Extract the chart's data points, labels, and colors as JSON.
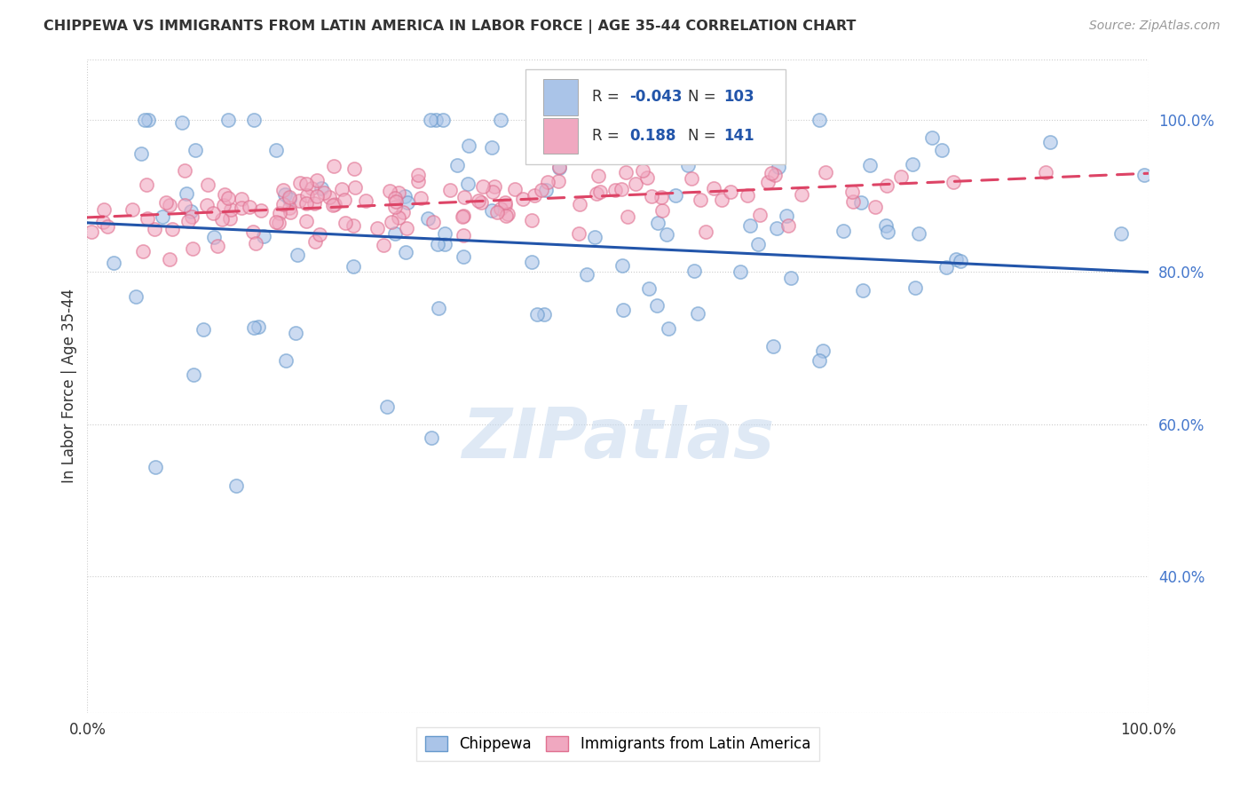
{
  "title": "CHIPPEWA VS IMMIGRANTS FROM LATIN AMERICA IN LABOR FORCE | AGE 35-44 CORRELATION CHART",
  "source": "Source: ZipAtlas.com",
  "ylabel": "In Labor Force | Age 35-44",
  "watermark": "ZIPatlas",
  "blue_r": "-0.043",
  "blue_n": "103",
  "pink_r": "0.188",
  "pink_n": "141",
  "blue_color": "#aac4e8",
  "pink_color": "#f0a8c0",
  "blue_edge_color": "#6699cc",
  "pink_edge_color": "#e07090",
  "blue_line_color": "#2255aa",
  "pink_line_color": "#dd4466",
  "right_label_color": "#4477cc",
  "xlim": [
    0.0,
    1.0
  ],
  "ylim": [
    0.22,
    1.08
  ],
  "yticks": [
    0.4,
    0.6,
    0.8,
    1.0
  ],
  "ytick_labels": [
    "40.0%",
    "60.0%",
    "80.0%",
    "100.0%"
  ],
  "xticks": [
    0.0,
    1.0
  ],
  "xtick_labels": [
    "0.0%",
    "100.0%"
  ],
  "blue_trend_x": [
    0.0,
    1.0
  ],
  "blue_trend_y": [
    0.865,
    0.8
  ],
  "pink_trend_x": [
    0.0,
    1.0
  ],
  "pink_trend_y": [
    0.872,
    0.93
  ],
  "background_color": "#ffffff",
  "grid_color": "#cccccc",
  "legend_label_blue": "Chippewa",
  "legend_label_pink": "Immigrants from Latin America"
}
